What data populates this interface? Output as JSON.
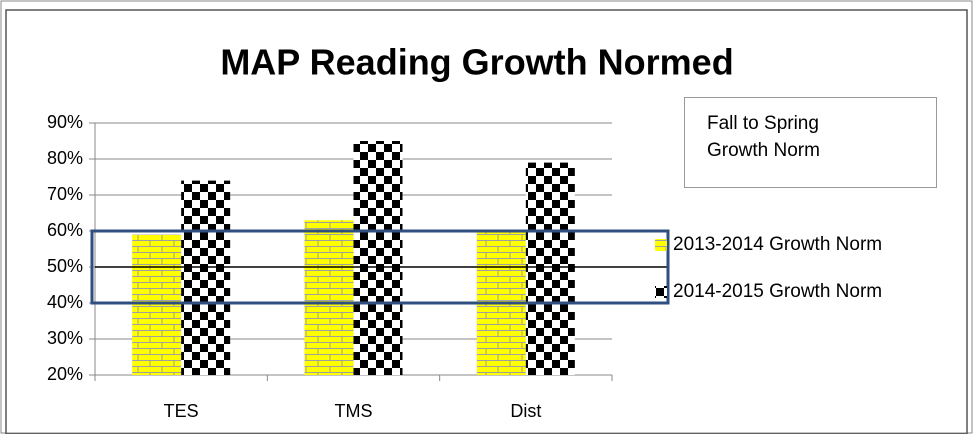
{
  "chart_data": {
    "type": "bar",
    "title": "MAP Reading Growth Normed",
    "annotation": "Fall to Spring Growth Norm",
    "categories": [
      "TES",
      "TMS",
      "Dist"
    ],
    "series": [
      {
        "name": "2013-2014 Growth Norm",
        "color": "#ffff00",
        "pattern": "brick",
        "values": [
          59,
          63,
          60
        ]
      },
      {
        "name": "2014-2015 Growth Norm",
        "color": "#000000",
        "pattern": "checker",
        "values": [
          74,
          85,
          79
        ]
      }
    ],
    "ylim": [
      20,
      90
    ],
    "yticks": [
      {
        "value": 20,
        "label": "20%"
      },
      {
        "value": 30,
        "label": "30%"
      },
      {
        "value": 40,
        "label": "40%"
      },
      {
        "value": 50,
        "label": "50%"
      },
      {
        "value": 60,
        "label": "60%"
      },
      {
        "value": 70,
        "label": "70%"
      },
      {
        "value": 80,
        "label": "80%"
      },
      {
        "value": 90,
        "label": "90%"
      }
    ],
    "grid": true,
    "reference_line": 50,
    "highlight_band": [
      40,
      60
    ],
    "highlight_color": "#2e4f7f"
  }
}
